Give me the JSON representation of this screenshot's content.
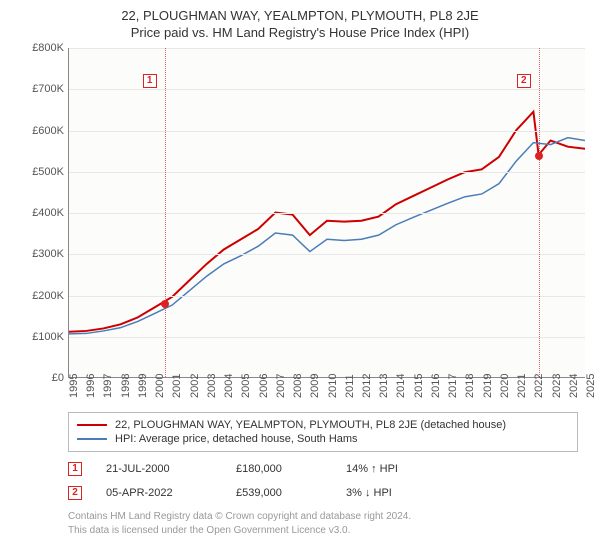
{
  "title": "22, PLOUGHMAN WAY, YEALMPTON, PLYMOUTH, PL8 2JE",
  "subtitle": "Price paid vs. HM Land Registry's House Price Index (HPI)",
  "chart": {
    "type": "line",
    "background_color": "#fcfcfa",
    "grid_color": "#e8e8e8",
    "axis_color": "#888",
    "label_fontsize": 11,
    "label_color": "#555555",
    "ylim": [
      0,
      800000
    ],
    "ytick_step": 100000,
    "yticks": [
      "£0",
      "£100K",
      "£200K",
      "£300K",
      "£400K",
      "£500K",
      "£600K",
      "£700K",
      "£800K"
    ],
    "xlim": [
      1995,
      2025
    ],
    "xticks": [
      "1995",
      "1996",
      "1997",
      "1998",
      "1999",
      "2000",
      "2001",
      "2002",
      "2003",
      "2004",
      "2005",
      "2006",
      "2007",
      "2008",
      "2009",
      "2010",
      "2011",
      "2012",
      "2013",
      "2014",
      "2015",
      "2016",
      "2017",
      "2018",
      "2019",
      "2020",
      "2021",
      "2022",
      "2023",
      "2024",
      "2025"
    ],
    "series": [
      {
        "name": "22, PLOUGHMAN WAY, YEALMPTON, PLYMOUTH, PL8 2JE (detached house)",
        "color": "#cc0000",
        "line_width": 2,
        "data": [
          [
            1995,
            110000
          ],
          [
            1996,
            112000
          ],
          [
            1997,
            118000
          ],
          [
            1998,
            128000
          ],
          [
            1999,
            145000
          ],
          [
            2000,
            170000
          ],
          [
            2001,
            195000
          ],
          [
            2002,
            235000
          ],
          [
            2003,
            275000
          ],
          [
            2004,
            310000
          ],
          [
            2005,
            335000
          ],
          [
            2006,
            360000
          ],
          [
            2007,
            400000
          ],
          [
            2008,
            395000
          ],
          [
            2009,
            345000
          ],
          [
            2010,
            380000
          ],
          [
            2011,
            378000
          ],
          [
            2012,
            380000
          ],
          [
            2013,
            390000
          ],
          [
            2014,
            420000
          ],
          [
            2015,
            440000
          ],
          [
            2016,
            460000
          ],
          [
            2017,
            480000
          ],
          [
            2018,
            498000
          ],
          [
            2019,
            505000
          ],
          [
            2020,
            535000
          ],
          [
            2021,
            600000
          ],
          [
            2022,
            645000
          ],
          [
            2022.3,
            540000
          ],
          [
            2023,
            575000
          ],
          [
            2024,
            560000
          ],
          [
            2025,
            555000
          ]
        ]
      },
      {
        "name": "HPI: Average price, detached house, South Hams",
        "color": "#4a7db8",
        "line_width": 1.5,
        "data": [
          [
            1995,
            105000
          ],
          [
            1996,
            106000
          ],
          [
            1997,
            112000
          ],
          [
            1998,
            120000
          ],
          [
            1999,
            135000
          ],
          [
            2000,
            155000
          ],
          [
            2001,
            175000
          ],
          [
            2002,
            210000
          ],
          [
            2003,
            245000
          ],
          [
            2004,
            275000
          ],
          [
            2005,
            295000
          ],
          [
            2006,
            318000
          ],
          [
            2007,
            350000
          ],
          [
            2008,
            345000
          ],
          [
            2009,
            305000
          ],
          [
            2010,
            335000
          ],
          [
            2011,
            332000
          ],
          [
            2012,
            335000
          ],
          [
            2013,
            345000
          ],
          [
            2014,
            370000
          ],
          [
            2015,
            388000
          ],
          [
            2016,
            405000
          ],
          [
            2017,
            422000
          ],
          [
            2018,
            438000
          ],
          [
            2019,
            445000
          ],
          [
            2020,
            470000
          ],
          [
            2021,
            525000
          ],
          [
            2022,
            570000
          ],
          [
            2023,
            565000
          ],
          [
            2024,
            582000
          ],
          [
            2025,
            575000
          ]
        ]
      }
    ],
    "sale_points": [
      {
        "x": 2000.55,
        "y": 180000
      },
      {
        "x": 2022.26,
        "y": 539000
      }
    ],
    "event_markers": [
      {
        "label": "1",
        "x": 2000.55,
        "box_y": 0.08
      },
      {
        "label": "2",
        "x": 2022.26,
        "box_y": 0.08
      }
    ]
  },
  "legend": {
    "border_color": "#bbbbbb",
    "items": [
      {
        "color": "#cc0000",
        "label": "22, PLOUGHMAN WAY, YEALMPTON, PLYMOUTH, PL8 2JE (detached house)"
      },
      {
        "color": "#4a7db8",
        "label": "HPI: Average price, detached house, South Hams"
      }
    ]
  },
  "events": [
    {
      "num": "1",
      "date": "21-JUL-2000",
      "price": "£180,000",
      "pct": "14% ↑ HPI"
    },
    {
      "num": "2",
      "date": "05-APR-2022",
      "price": "£539,000",
      "pct": "3% ↓ HPI"
    }
  ],
  "footnote_line1": "Contains HM Land Registry data © Crown copyright and database right 2024.",
  "footnote_line2": "This data is licensed under the Open Government Licence v3.0."
}
